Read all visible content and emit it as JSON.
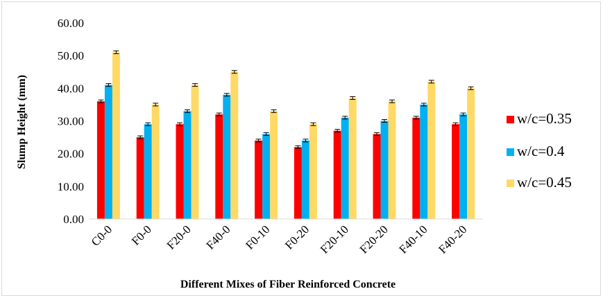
{
  "chart_data": {
    "type": "bar",
    "title": "",
    "xlabel": "Different Mixes of Fiber Reinforced Concrete",
    "ylabel": "Slump Height (mm)",
    "ylim": [
      0,
      60
    ],
    "yticks": [
      "0.00",
      "10.00",
      "20.00",
      "30.00",
      "40.00",
      "50.00",
      "60.00"
    ],
    "grid": false,
    "error_bars": true,
    "legend_position": "right",
    "categories": [
      "C0-0",
      "F0-0",
      "F20-0",
      "F40-0",
      "F0-10",
      "F0-20",
      "F20-10",
      "F20-20",
      "F40-10",
      "F40-20"
    ],
    "series": [
      {
        "name": "w/c=0.35",
        "color": "#ff0000",
        "values": [
          36,
          25,
          29,
          32,
          24,
          22,
          27,
          26,
          31,
          29
        ]
      },
      {
        "name": "w/c=0.4",
        "color": "#00b0f0",
        "values": [
          41,
          29,
          33,
          38,
          26,
          24,
          31,
          30,
          35,
          32
        ]
      },
      {
        "name": "w/c=0.45",
        "color": "#ffd966",
        "values": [
          51,
          35,
          41,
          45,
          33,
          29,
          37,
          36,
          42,
          40
        ]
      }
    ]
  }
}
